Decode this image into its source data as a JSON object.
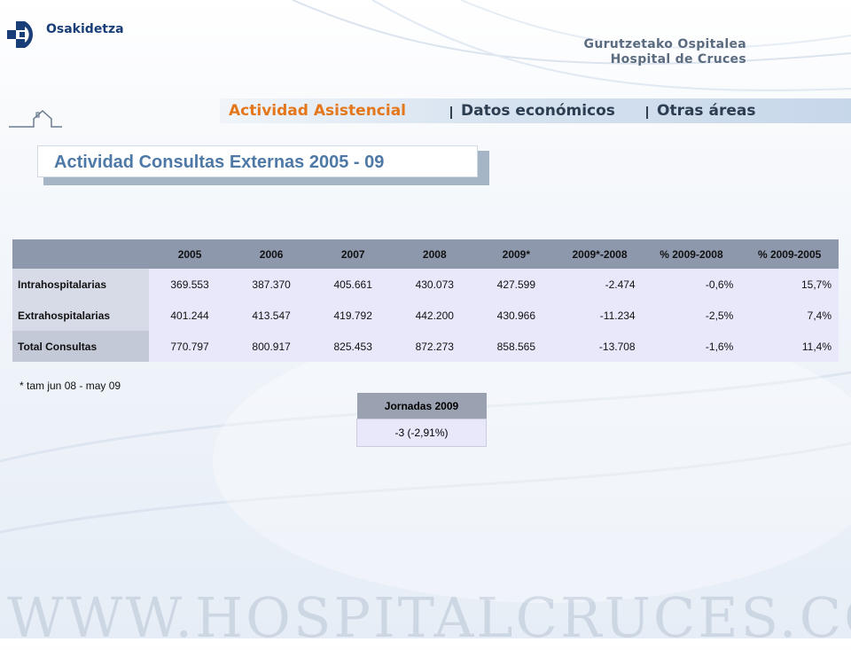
{
  "header": {
    "logo_text": "Osakidetza",
    "hospital_line1": "Gurutzetako Ospitalea",
    "hospital_line2": "Hospital de Cruces"
  },
  "nav": {
    "items": [
      {
        "label": "Actividad Asistencial",
        "active": true
      },
      {
        "label": "Datos económicos",
        "active": false
      },
      {
        "label": "Otras áreas",
        "active": false
      }
    ]
  },
  "page": {
    "title": "Actividad Consultas Externas 2005 - 09"
  },
  "table": {
    "headers": [
      "",
      "2005",
      "2006",
      "2007",
      "2008",
      "2009*",
      "2009*-2008",
      "% 2009-2008",
      "% 2009-2005"
    ],
    "rows": [
      {
        "label": "Intrahospitalarias",
        "values": [
          "369.553",
          "387.370",
          "405.661",
          "430.073",
          "427.599",
          "-2.474",
          "-0,6%",
          "15,7%"
        ]
      },
      {
        "label": "Extrahospitalarias",
        "values": [
          "401.244",
          "413.547",
          "419.792",
          "442.200",
          "430.966",
          "-11.234",
          "-2,5%",
          "7,4%"
        ]
      },
      {
        "label": "Total Consultas",
        "values": [
          "770.797",
          "800.917",
          "825.453",
          "872.273",
          "858.565",
          "-13.708",
          "-1,6%",
          "11,4%"
        ]
      }
    ]
  },
  "footnote": "* tam jun 08 - may 09",
  "jornadas": {
    "header": "Jornadas 2009",
    "value": "-3 (-2,91%)"
  },
  "watermark": "WWW.HOSPITALCRUCES.COM",
  "colors": {
    "nav_active": "#e4761c",
    "nav_inactive": "#2e3e52",
    "title": "#4e79a7",
    "brand_blue": "#1a3f78"
  }
}
